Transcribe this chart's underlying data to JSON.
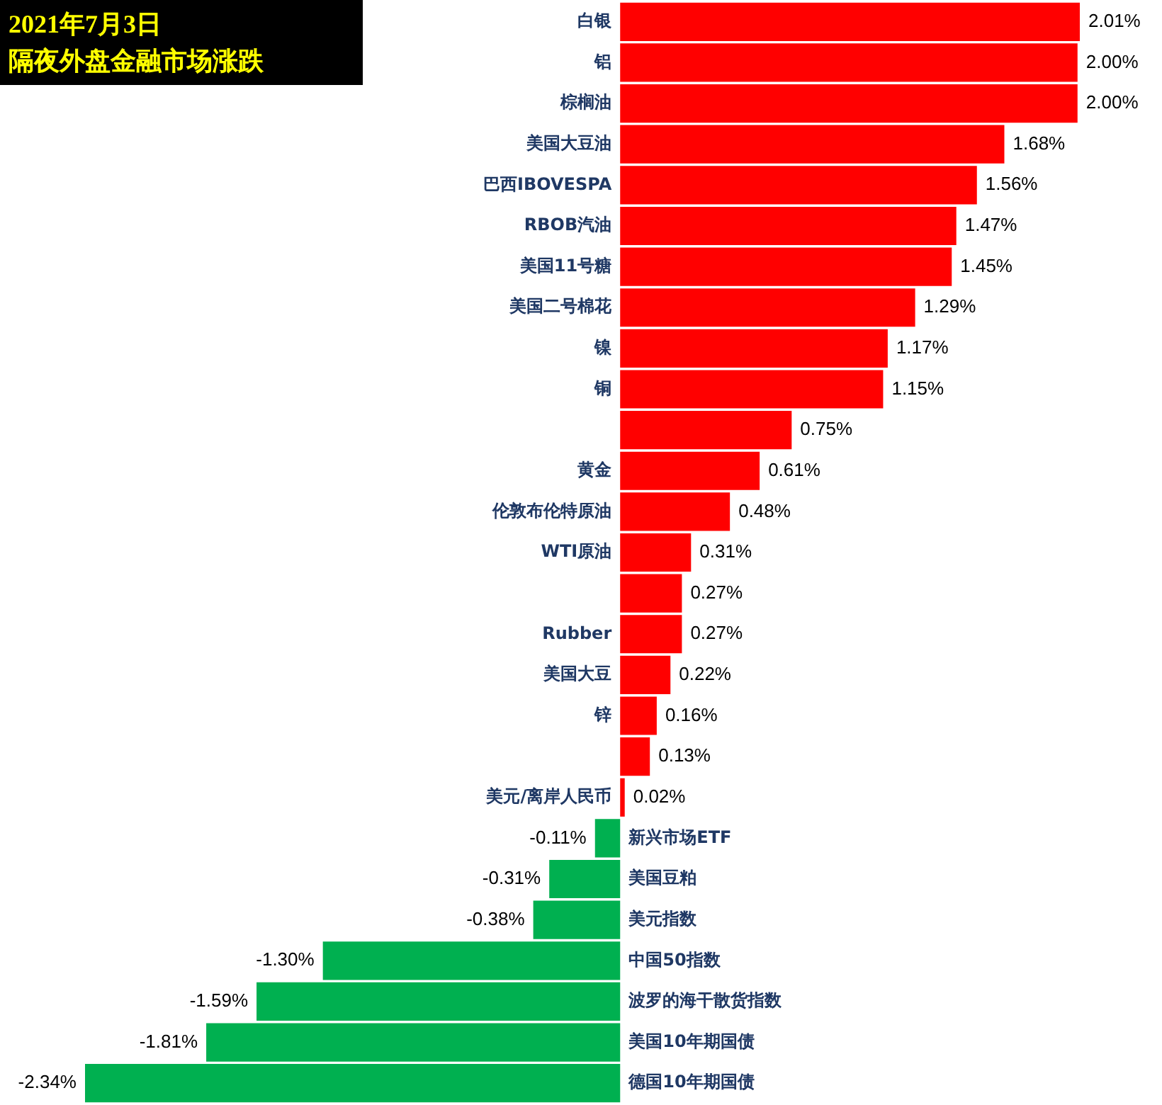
{
  "chart_data": {
    "type": "bar",
    "orientation": "horizontal",
    "title": "2021年7月3日",
    "subtitle": "隔夜外盘金融市场涨跌",
    "categories": [
      "白银",
      "铝",
      "棕榈油",
      "美国大豆油",
      "巴西IBOVESPA",
      "RBOB汽油",
      "美国11号糖",
      "美国二号棉花",
      "镍",
      "铜",
      null,
      "黄金",
      "伦敦布伦特原油",
      "WTI原油",
      null,
      "Rubber",
      "美国大豆",
      "锌",
      null,
      "美元/离岸人民币",
      "新兴市场ETF",
      "美国豆粕",
      "美元指数",
      "中国50指数",
      "波罗的海干散货指数",
      "美国10年期国债",
      "德国10年期国债"
    ],
    "values": [
      2.01,
      2.0,
      2.0,
      1.68,
      1.56,
      1.47,
      1.45,
      1.29,
      1.17,
      1.15,
      0.75,
      0.61,
      0.48,
      0.31,
      0.27,
      0.27,
      0.22,
      0.16,
      0.13,
      0.02,
      -0.11,
      -0.31,
      -0.38,
      -1.3,
      -1.59,
      -1.81,
      -2.34
    ],
    "value_labels": [
      "2.01%",
      "2.00%",
      "2.00%",
      "1.68%",
      "1.56%",
      "1.47%",
      "1.45%",
      "1.29%",
      "1.17%",
      "1.15%",
      "0.75%",
      "0.61%",
      "0.48%",
      "0.31%",
      "0.27%",
      "0.27%",
      "0.22%",
      "0.16%",
      "0.13%",
      "0.02%",
      "-0.11%",
      "-0.31%",
      "-0.38%",
      "-1.30%",
      "-1.59%",
      "-1.81%",
      "-2.34%"
    ],
    "colors": [
      "#ff0000",
      "#ff0000",
      "#ff0000",
      "#ff0000",
      "#ff0000",
      "#ff0000",
      "#ff0000",
      "#ff0000",
      "#ff0000",
      "#ff0000",
      "#ff0000",
      "#ff0000",
      "#ff0000",
      "#ff0000",
      "#ff0000",
      "#ff0000",
      "#ff0000",
      "#ff0000",
      "#ff0000",
      "#ff0000",
      "#00b050",
      "#00b050",
      "#00b050",
      "#00b050",
      "#00b050",
      "#00b050",
      "#00b050"
    ],
    "tick_labels": false,
    "legend": false
  }
}
